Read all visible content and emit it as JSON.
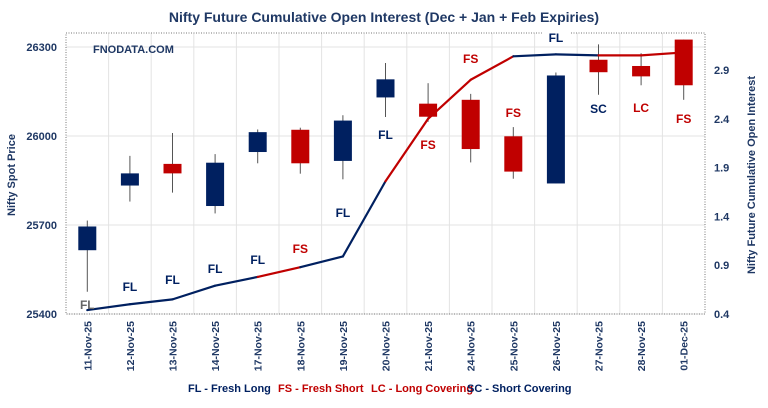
{
  "chart_data": {
    "type": "candlestick+line",
    "title": "Nifty Future Cumulative Open Interest (Dec + Jan  + Feb Expiries)",
    "watermark": "FNODATA.COM",
    "ylabel_left": "Nifty Spot Price",
    "ylabel_right": "Nifty Future Cumulative Open Interest",
    "ylim_left": [
      25400,
      26300
    ],
    "yticks_left": [
      "25400",
      "25700",
      "26000",
      "26300"
    ],
    "ylim_right": [
      0.4,
      2.9
    ],
    "yticks_right": [
      "0.4",
      "0.9",
      "1.4",
      "1.9",
      "2.4",
      "2.9"
    ],
    "grid": true,
    "categories": [
      "11-Nov-25",
      "12-Nov-25",
      "13-Nov-25",
      "14-Nov-25",
      "17-Nov-25",
      "18-Nov-25",
      "19-Nov-25",
      "20-Nov-25",
      "21-Nov-25",
      "24-Nov-25",
      "25-Nov-25",
      "26-Nov-25",
      "27-Nov-25",
      "28-Nov-25",
      "01-Dec-25"
    ],
    "ohlc": [
      {
        "open": 25615,
        "high": 25715,
        "low": 25475,
        "close": 25695
      },
      {
        "open": 25833,
        "high": 25933,
        "low": 25779,
        "close": 25874
      },
      {
        "open": 25906,
        "high": 26010,
        "low": 25809,
        "close": 25874
      },
      {
        "open": 25764,
        "high": 25939,
        "low": 25739,
        "close": 25910
      },
      {
        "open": 25946,
        "high": 26022,
        "low": 25908,
        "close": 26013
      },
      {
        "open": 26021,
        "high": 26028,
        "low": 25873,
        "close": 25908
      },
      {
        "open": 25916,
        "high": 26070,
        "low": 25854,
        "close": 26052
      },
      {
        "open": 26130,
        "high": 26246,
        "low": 26064,
        "close": 26191
      },
      {
        "open": 26109,
        "high": 26178,
        "low": 26048,
        "close": 26065
      },
      {
        "open": 26122,
        "high": 26142,
        "low": 25911,
        "close": 25956
      },
      {
        "open": 25999,
        "high": 26030,
        "low": 25856,
        "close": 25880
      },
      {
        "open": 25840,
        "high": 26214,
        "low": 25840,
        "close": 26204
      },
      {
        "open": 26257,
        "high": 26309,
        "low": 26139,
        "close": 26215
      },
      {
        "open": 26236,
        "high": 26279,
        "low": 26171,
        "close": 26201
      },
      {
        "open": 26325,
        "high": 26325,
        "low": 26122,
        "close": 26171
      }
    ],
    "open_interest": [
      0.44,
      0.5,
      0.55,
      0.69,
      0.78,
      0.88,
      0.99,
      1.76,
      2.4,
      2.8,
      3.04,
      3.06,
      3.05,
      3.05,
      3.08
    ],
    "signals": [
      "FL",
      "FL",
      "FL",
      "FL",
      "FL",
      "FS",
      "FL",
      "FL",
      "FS",
      "FS",
      "FS",
      "FL",
      "SC",
      "LC",
      "FS"
    ],
    "legend": [
      {
        "code": "FL",
        "text": "FL - Fresh Long",
        "color": "#002060"
      },
      {
        "code": "FS",
        "text": "FS - Fresh Short",
        "color": "#c00000"
      },
      {
        "code": "LC",
        "text": "LC - Long Covering",
        "color": "#c00000"
      },
      {
        "code": "SC",
        "text": "SC - Short Covering",
        "color": "#002060"
      }
    ],
    "legend_position": "bottom",
    "colors": {
      "bull": "#002060",
      "bear": "#c00000",
      "first_label": "#666666",
      "title": "#1f3864"
    }
  }
}
